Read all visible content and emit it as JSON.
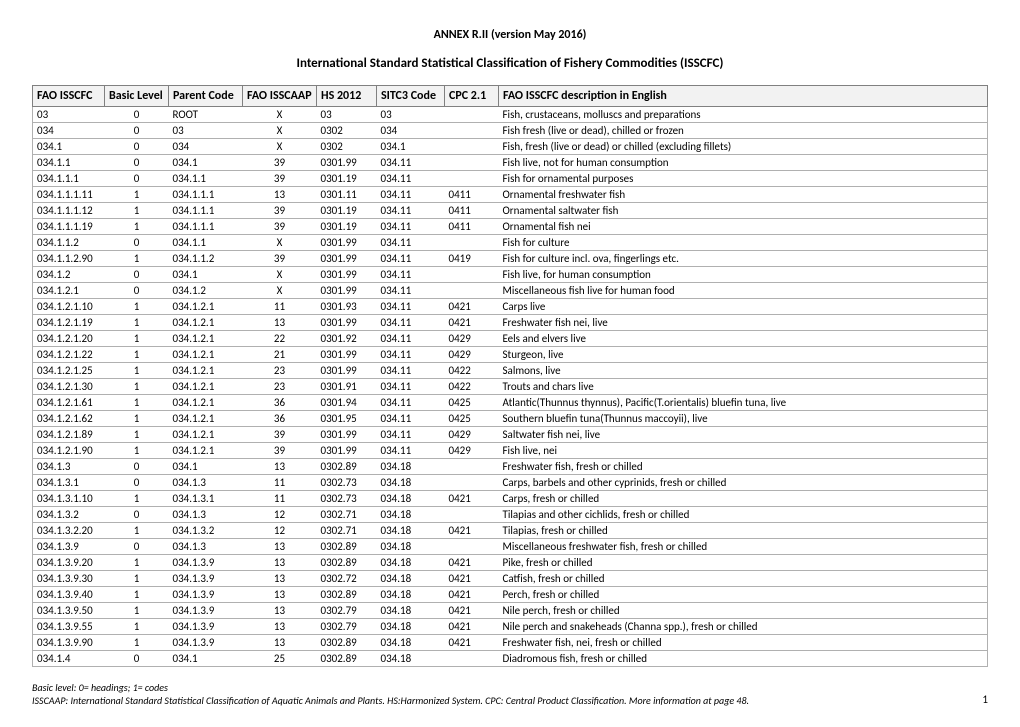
{
  "annex_title": "ANNEX R.II (version May 2016)",
  "main_title": "International Standard Statistical Classification of Fishery Commodities (ISSCFC)",
  "columns": [
    "FAO ISSCFC",
    "Basic Level",
    "Parent Code",
    "FAO ISSCAAP",
    "HS 2012",
    "SITC3 Code",
    "CPC 2.1",
    "FAO ISSCFC description in English"
  ],
  "rows": [
    [
      "03",
      "0",
      "ROOT",
      "X",
      "03",
      "03",
      "",
      "Fish, crustaceans, molluscs and preparations"
    ],
    [
      "034",
      "0",
      "03",
      "X",
      "0302",
      "034",
      "",
      "Fish fresh (live or dead), chilled or frozen"
    ],
    [
      "034.1",
      "0",
      "034",
      "X",
      "0302",
      "034.1",
      "",
      "Fish, fresh (live or dead) or chilled (excluding fillets)"
    ],
    [
      "034.1.1",
      "0",
      "034.1",
      "39",
      "0301.99",
      "034.11",
      "",
      "Fish live, not for human consumption"
    ],
    [
      "034.1.1.1",
      "0",
      "034.1.1",
      "39",
      "0301.19",
      "034.11",
      "",
      "Fish for ornamental purposes"
    ],
    [
      "034.1.1.1.11",
      "1",
      "034.1.1.1",
      "13",
      "0301.11",
      "034.11",
      "0411",
      "Ornamental freshwater fish"
    ],
    [
      "034.1.1.1.12",
      "1",
      "034.1.1.1",
      "39",
      "0301.19",
      "034.11",
      "0411",
      "Ornamental saltwater fish"
    ],
    [
      "034.1.1.1.19",
      "1",
      "034.1.1.1",
      "39",
      "0301.19",
      "034.11",
      "0411",
      "Ornamental fish nei"
    ],
    [
      "034.1.1.2",
      "0",
      "034.1.1",
      "X",
      "0301.99",
      "034.11",
      "",
      "Fish for culture"
    ],
    [
      "034.1.1.2.90",
      "1",
      "034.1.1.2",
      "39",
      "0301.99",
      "034.11",
      "0419",
      "Fish for culture incl. ova, fingerlings etc."
    ],
    [
      "034.1.2",
      "0",
      "034.1",
      "X",
      "0301.99",
      "034.11",
      "",
      "Fish live, for human consumption"
    ],
    [
      "034.1.2.1",
      "0",
      "034.1.2",
      "X",
      "0301.99",
      "034.11",
      "",
      "Miscellaneous fish live for human food"
    ],
    [
      "034.1.2.1.10",
      "1",
      "034.1.2.1",
      "11",
      "0301.93",
      "034.11",
      "0421",
      "Carps live"
    ],
    [
      "034.1.2.1.19",
      "1",
      "034.1.2.1",
      "13",
      "0301.99",
      "034.11",
      "0421",
      "Freshwater fish nei, live"
    ],
    [
      "034.1.2.1.20",
      "1",
      "034.1.2.1",
      "22",
      "0301.92",
      "034.11",
      "0429",
      "Eels and elvers live"
    ],
    [
      "034.1.2.1.22",
      "1",
      "034.1.2.1",
      "21",
      "0301.99",
      "034.11",
      "0429",
      "Sturgeon, live"
    ],
    [
      "034.1.2.1.25",
      "1",
      "034.1.2.1",
      "23",
      "0301.99",
      "034.11",
      "0422",
      "Salmons, live"
    ],
    [
      "034.1.2.1.30",
      "1",
      "034.1.2.1",
      "23",
      "0301.91",
      "034.11",
      "0422",
      "Trouts and chars live"
    ],
    [
      "034.1.2.1.61",
      "1",
      "034.1.2.1",
      "36",
      "0301.94",
      "034.11",
      "0425",
      "Atlantic(Thunnus thynnus), Pacific(T.orientalis) bluefin tuna, live"
    ],
    [
      "034.1.2.1.62",
      "1",
      "034.1.2.1",
      "36",
      "0301.95",
      "034.11",
      "0425",
      "Southern bluefin tuna(Thunnus maccoyii), live"
    ],
    [
      "034.1.2.1.89",
      "1",
      "034.1.2.1",
      "39",
      "0301.99",
      "034.11",
      "0429",
      "Saltwater fish nei, live"
    ],
    [
      "034.1.2.1.90",
      "1",
      "034.1.2.1",
      "39",
      "0301.99",
      "034.11",
      "0429",
      "Fish live, nei"
    ],
    [
      "034.1.3",
      "0",
      "034.1",
      "13",
      "0302.89",
      "034.18",
      "",
      "Freshwater fish, fresh or chilled"
    ],
    [
      "034.1.3.1",
      "0",
      "034.1.3",
      "11",
      "0302.73",
      "034.18",
      "",
      "Carps, barbels and other cyprinids, fresh or chilled"
    ],
    [
      "034.1.3.1.10",
      "1",
      "034.1.3.1",
      "11",
      "0302.73",
      "034.18",
      "0421",
      "Carps, fresh or chilled"
    ],
    [
      "034.1.3.2",
      "0",
      "034.1.3",
      "12",
      "0302.71",
      "034.18",
      "",
      "Tilapias and other cichlids, fresh or chilled"
    ],
    [
      "034.1.3.2.20",
      "1",
      "034.1.3.2",
      "12",
      "0302.71",
      "034.18",
      "0421",
      "Tilapias, fresh or chilled"
    ],
    [
      "034.1.3.9",
      "0",
      "034.1.3",
      "13",
      "0302.89",
      "034.18",
      "",
      "Miscellaneous freshwater fish, fresh or chilled"
    ],
    [
      "034.1.3.9.20",
      "1",
      "034.1.3.9",
      "13",
      "0302.89",
      "034.18",
      "0421",
      "Pike, fresh or chilled"
    ],
    [
      "034.1.3.9.30",
      "1",
      "034.1.3.9",
      "13",
      "0302.72",
      "034.18",
      "0421",
      "Catfish, fresh or chilled"
    ],
    [
      "034.1.3.9.40",
      "1",
      "034.1.3.9",
      "13",
      "0302.89",
      "034.18",
      "0421",
      "Perch, fresh or chilled"
    ],
    [
      "034.1.3.9.50",
      "1",
      "034.1.3.9",
      "13",
      "0302.79",
      "034.18",
      "0421",
      "Nile perch, fresh or chilled"
    ],
    [
      "034.1.3.9.55",
      "1",
      "034.1.3.9",
      "13",
      "0302.79",
      "034.18",
      "0421",
      "Nile perch and snakeheads (Channa spp.),  fresh or chilled"
    ],
    [
      "034.1.3.9.90",
      "1",
      "034.1.3.9",
      "13",
      "0302.89",
      "034.18",
      "0421",
      "Freshwater fish, nei, fresh or chilled"
    ],
    [
      "034.1.4",
      "0",
      "034.1",
      "25",
      "0302.89",
      "034.18",
      "",
      "Diadromous fish, fresh or chilled"
    ]
  ],
  "footer_line1": "Basic level:  0= headings; 1= codes",
  "footer_line2": "ISSCAAP: International Standard Statistical Classification of Aquatic Animals and Plants.   HS:Harmonized System.   CPC: Central Product Classification. More information at page 48.",
  "page_number": "1"
}
